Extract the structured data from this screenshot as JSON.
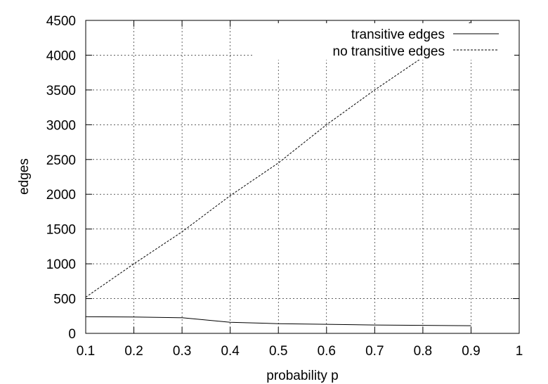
{
  "chart_data": {
    "type": "line",
    "xlabel": "probability p",
    "ylabel": "edges",
    "xlim": [
      0.1,
      1
    ],
    "ylim": [
      0,
      4500
    ],
    "x_ticks": [
      "0.1",
      "0.2",
      "0.3",
      "0.4",
      "0.5",
      "0.6",
      "0.7",
      "0.8",
      "0.9",
      "1"
    ],
    "y_ticks": [
      "0",
      "500",
      "1000",
      "1500",
      "2000",
      "2500",
      "3000",
      "3500",
      "4000",
      "4500"
    ],
    "grid": true,
    "legend_position": "top-right",
    "series": [
      {
        "name": "transitive edges",
        "line_style": "solid",
        "x": [
          0.1,
          0.2,
          0.3,
          0.4,
          0.5,
          0.6,
          0.7,
          0.8,
          0.9
        ],
        "y": [
          240,
          235,
          225,
          160,
          140,
          130,
          120,
          115,
          110
        ]
      },
      {
        "name": "no transitive edges",
        "line_style": "dashed",
        "x": [
          0.1,
          0.2,
          0.3,
          0.4,
          0.5,
          0.6,
          0.7,
          0.8,
          0.9
        ],
        "y": [
          520,
          1000,
          1460,
          1980,
          2450,
          3000,
          3500,
          3970,
          4480
        ]
      }
    ]
  }
}
